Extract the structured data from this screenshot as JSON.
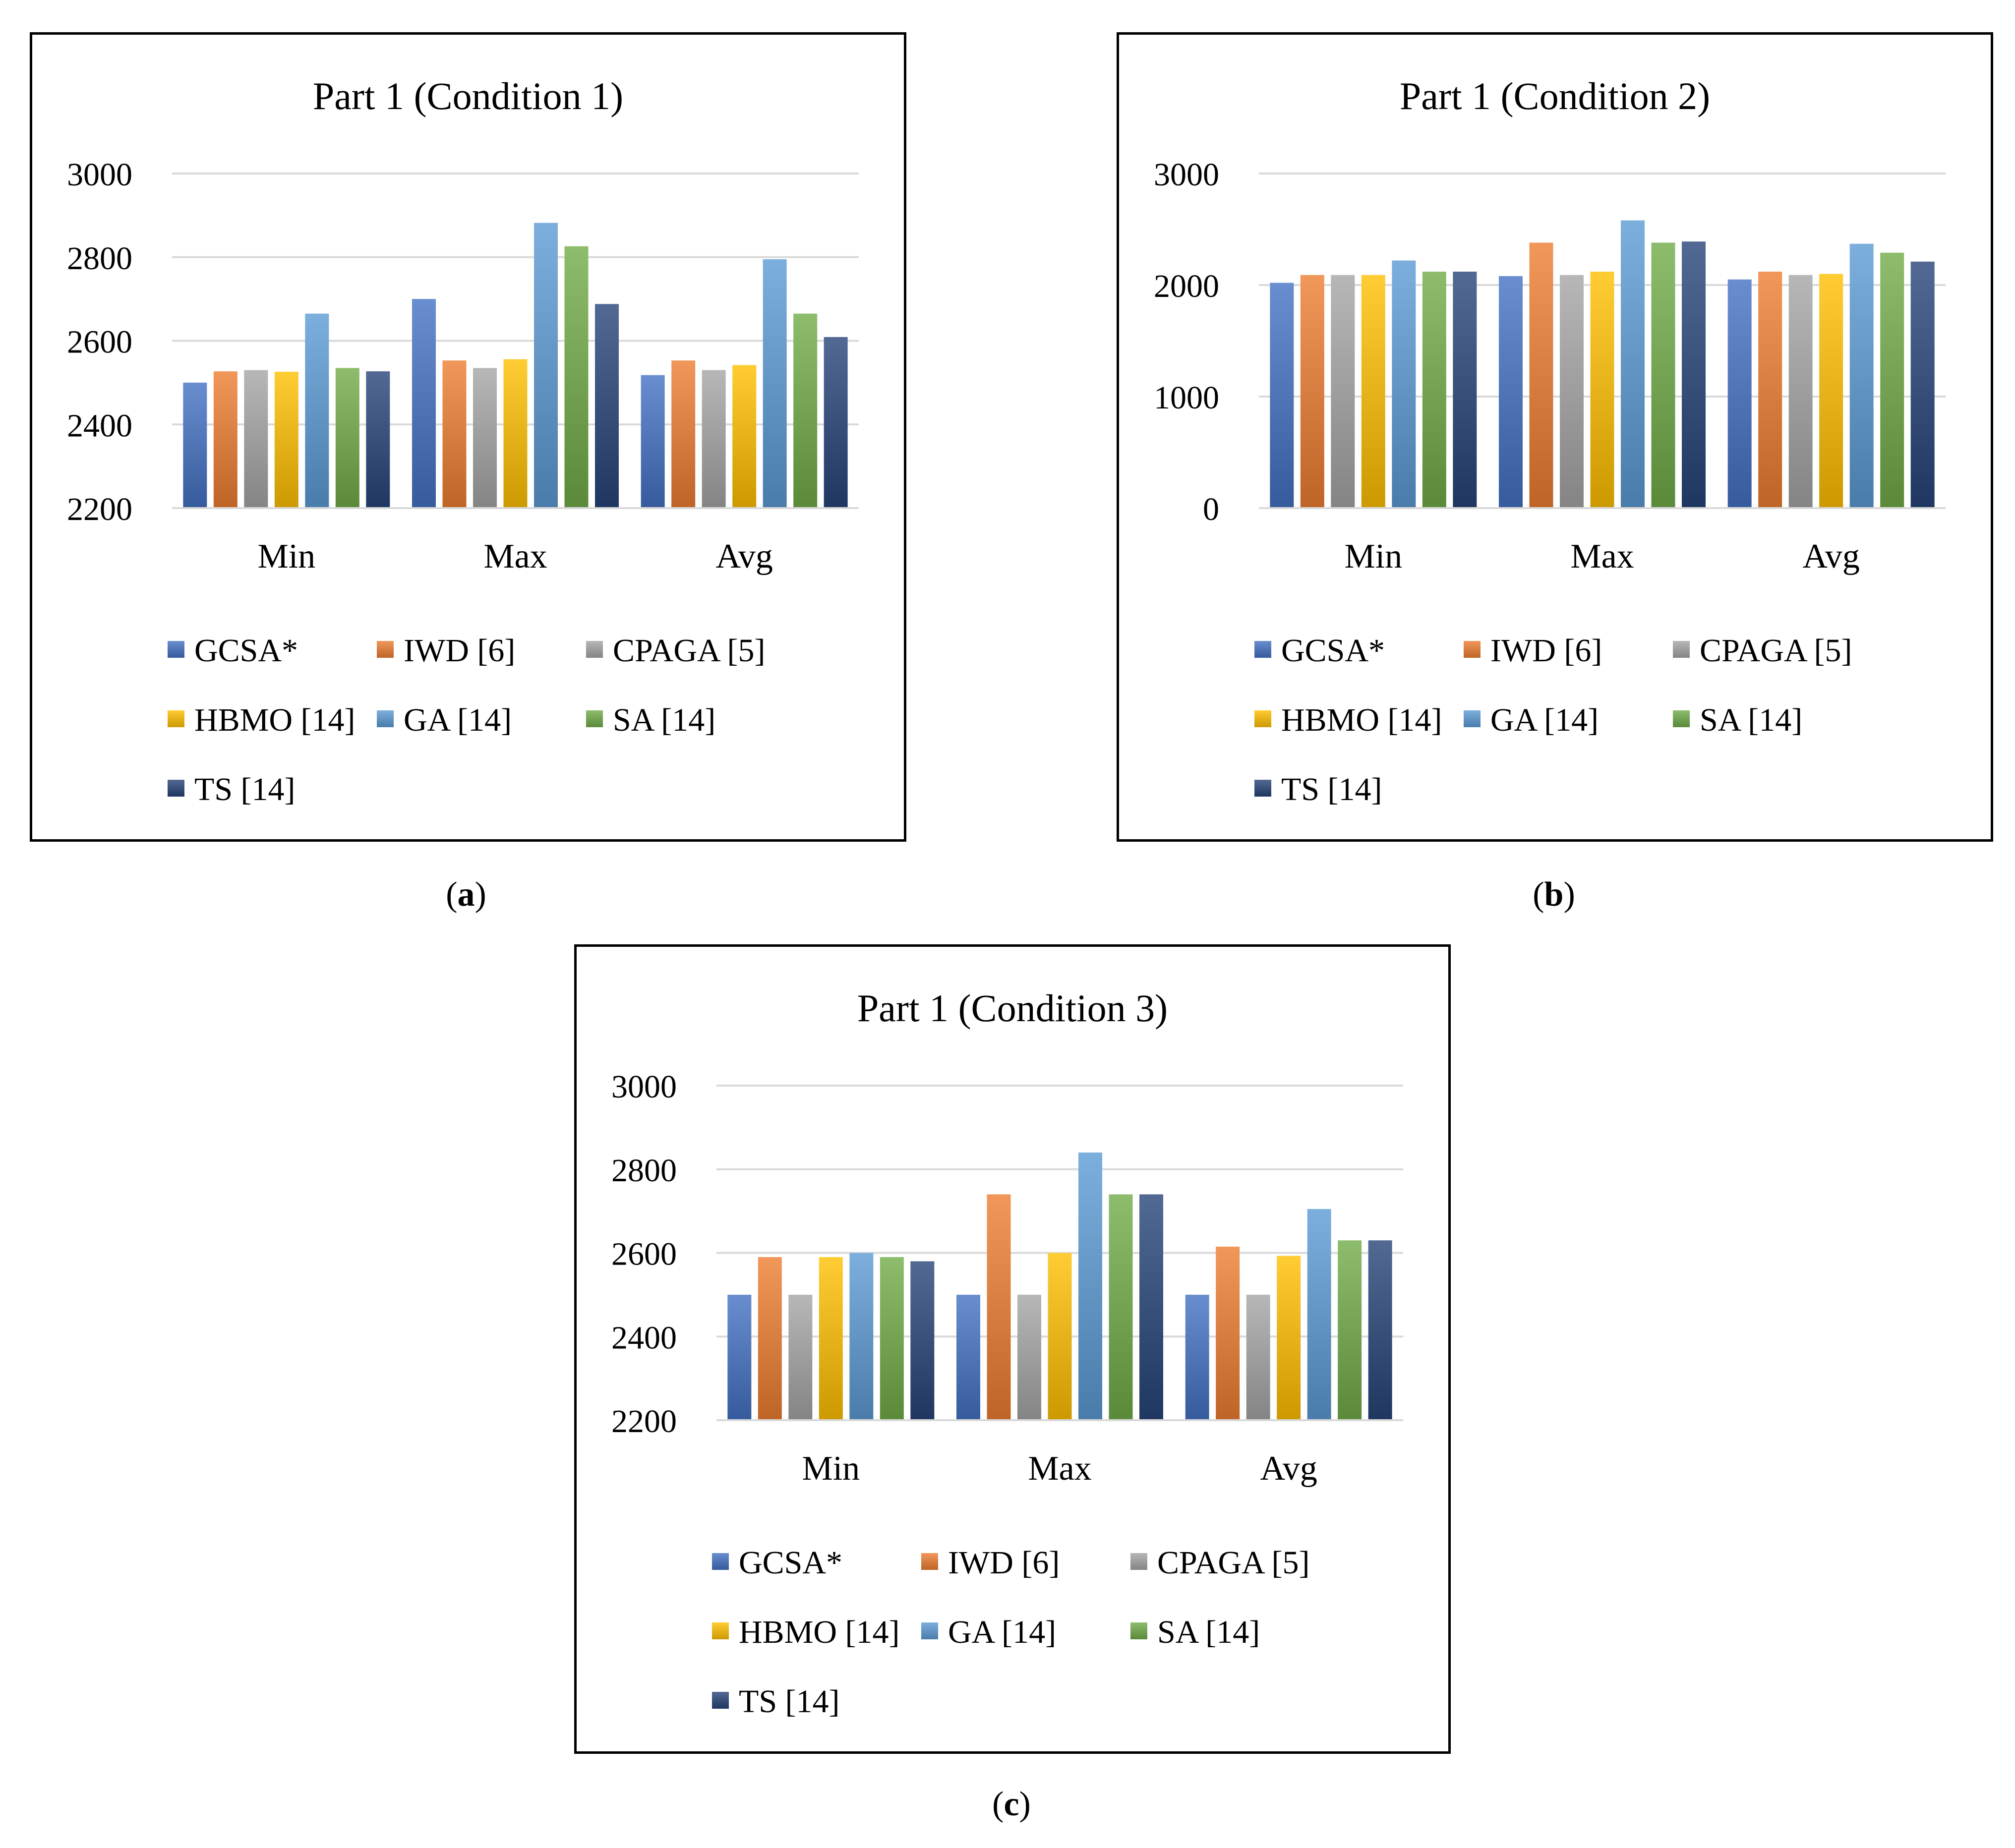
{
  "series_meta": [
    {
      "name": "GCSA*",
      "color": "#4472C4"
    },
    {
      "name": "IWD [6]",
      "color": "#ED7D31"
    },
    {
      "name": "CPAGA [5]",
      "color": "#A5A5A5"
    },
    {
      "name": "HBMO [14]",
      "color": "#FFC000"
    },
    {
      "name": "GA [14]",
      "color": "#5B9BD5"
    },
    {
      "name": "SA [14]",
      "color": "#70AD47"
    },
    {
      "name": "TS [14]",
      "color": "#264478"
    }
  ],
  "chart_data": [
    {
      "type": "bar",
      "title": "Part 1 (Condition 1)",
      "categories": [
        "Min",
        "Max",
        "Avg"
      ],
      "ylim": [
        2200,
        3000
      ],
      "yticks": [
        "2200",
        "2400",
        "2600",
        "2800",
        "3000"
      ],
      "legend_position": "bottom",
      "caption": "a",
      "series": [
        {
          "name": "GCSA*",
          "values": [
            2500,
            2700,
            2518
          ]
        },
        {
          "name": "IWD [6]",
          "values": [
            2527,
            2553,
            2553
          ]
        },
        {
          "name": "CPAGA [5]",
          "values": [
            2530,
            2535,
            2530
          ]
        },
        {
          "name": "HBMO [14]",
          "values": [
            2526,
            2556,
            2542
          ]
        },
        {
          "name": "GA [14]",
          "values": [
            2665,
            2882,
            2795
          ]
        },
        {
          "name": "SA [14]",
          "values": [
            2535,
            2826,
            2665
          ]
        },
        {
          "name": "TS [14]",
          "values": [
            2527,
            2688,
            2609
          ]
        }
      ]
    },
    {
      "type": "bar",
      "title": "Part 1 (Condition 2)",
      "categories": [
        "Min",
        "Max",
        "Avg"
      ],
      "ylim": [
        0,
        3000
      ],
      "yticks": [
        "0",
        "1000",
        "2000",
        "3000"
      ],
      "legend_position": "bottom",
      "caption": "b",
      "series": [
        {
          "name": "GCSA*",
          "values": [
            2020,
            2080,
            2050
          ]
        },
        {
          "name": "IWD [6]",
          "values": [
            2090,
            2380,
            2120
          ]
        },
        {
          "name": "CPAGA [5]",
          "values": [
            2090,
            2090,
            2090
          ]
        },
        {
          "name": "HBMO [14]",
          "values": [
            2090,
            2120,
            2100
          ]
        },
        {
          "name": "GA [14]",
          "values": [
            2220,
            2580,
            2370
          ]
        },
        {
          "name": "SA [14]",
          "values": [
            2120,
            2380,
            2290
          ]
        },
        {
          "name": "TS [14]",
          "values": [
            2120,
            2390,
            2210
          ]
        }
      ]
    },
    {
      "type": "bar",
      "title": "Part 1 (Condition 3)",
      "categories": [
        "Min",
        "Max",
        "Avg"
      ],
      "ylim": [
        2200,
        3000
      ],
      "yticks": [
        "2200",
        "2400",
        "2600",
        "2800",
        "3000"
      ],
      "legend_position": "bottom",
      "caption": "c",
      "series": [
        {
          "name": "GCSA*",
          "values": [
            2500,
            2500,
            2500
          ]
        },
        {
          "name": "IWD [6]",
          "values": [
            2590,
            2740,
            2615
          ]
        },
        {
          "name": "CPAGA [5]",
          "values": [
            2500,
            2500,
            2500
          ]
        },
        {
          "name": "HBMO [14]",
          "values": [
            2590,
            2600,
            2593
          ]
        },
        {
          "name": "GA [14]",
          "values": [
            2600,
            2840,
            2705
          ]
        },
        {
          "name": "SA [14]",
          "values": [
            2590,
            2740,
            2630
          ]
        },
        {
          "name": "TS [14]",
          "values": [
            2580,
            2740,
            2630
          ]
        }
      ]
    }
  ]
}
